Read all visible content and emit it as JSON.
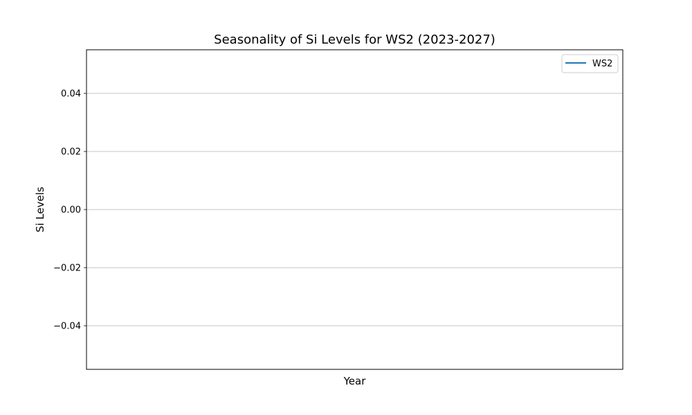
{
  "chart_data": {
    "type": "line",
    "title": "Seasonality of Si Levels for WS2 (2023-2027)",
    "xlabel": "Year",
    "ylabel": "Si Levels",
    "ylim": [
      -0.055,
      0.055
    ],
    "yticks": [
      -0.04,
      -0.02,
      0.0,
      0.02,
      0.04
    ],
    "ytick_labels": [
      "−0.04",
      "−0.02",
      "0.00",
      "0.02",
      "0.04"
    ],
    "grid": "horizontal",
    "legend_position": "top-right",
    "series": [
      {
        "name": "WS2",
        "color": "#1f77b4",
        "x": [],
        "y": []
      }
    ]
  }
}
